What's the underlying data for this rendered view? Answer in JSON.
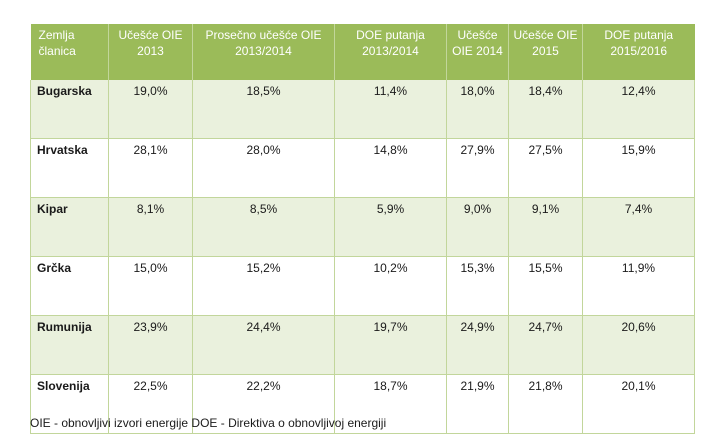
{
  "table": {
    "headers": [
      "Zemlja članica",
      "Učešće OIE 2013",
      "Prosečno učešće OIE 2013/2014",
      "DOE putanja 2013/2014",
      "Učešće OIE 2014",
      "Učešće OIE 2015",
      "DOE putanja 2015/2016"
    ],
    "rows": [
      [
        "Bugarska",
        "19,0%",
        "18,5%",
        "11,4%",
        "18,0%",
        "18,4%",
        "12,4%"
      ],
      [
        "Hrvatska",
        "28,1%",
        "28,0%",
        "14,8%",
        "27,9%",
        "27,5%",
        "15,9%"
      ],
      [
        "Kipar",
        "8,1%",
        "8,5%",
        "5,9%",
        "9,0%",
        "9,1%",
        "7,4%"
      ],
      [
        "Grčka",
        "15,0%",
        "15,2%",
        "10,2%",
        "15,3%",
        "15,5%",
        "11,9%"
      ],
      [
        "Rumunija",
        "23,9%",
        "24,4%",
        "19,7%",
        "24,9%",
        "24,7%",
        "20,6%"
      ],
      [
        "Slovenija",
        "22,5%",
        "22,2%",
        "18,7%",
        "21,9%",
        "21,8%",
        "20,1%"
      ]
    ]
  },
  "footnote": "OIE - obnovljivi izvori energije DOE - Direktiva o obnovljivoj energiji",
  "colors": {
    "header_bg": "#9bbb59",
    "shaded_row_bg": "#eaf1dd",
    "grid_line": "#c2d69b"
  }
}
